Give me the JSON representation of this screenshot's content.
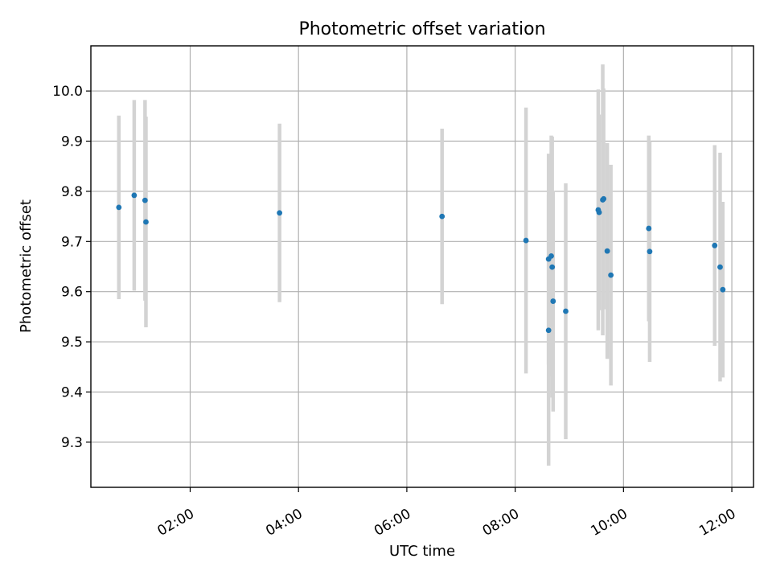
{
  "chart_data": {
    "type": "scatter",
    "title": "Photometric offset variation",
    "xlabel": "UTC time",
    "ylabel": "Photometric offset",
    "x_axis": "time",
    "xlim": [
      "00:10",
      "12:24"
    ],
    "ylim": [
      9.21,
      10.09
    ],
    "xticks": [
      "02:00",
      "04:00",
      "06:00",
      "08:00",
      "10:00",
      "12:00"
    ],
    "yticks": [
      9.3,
      9.4,
      9.5,
      9.6,
      9.7,
      9.8,
      9.9,
      10.0
    ],
    "ytick_labels": [
      "9.3",
      "9.4",
      "9.5",
      "9.6",
      "9.7",
      "9.8",
      "9.9",
      "10.0"
    ],
    "grid": true,
    "colors": {
      "point": "#1f77b4",
      "error_bar": "#d3d3d3",
      "grid": "#b0b0b0"
    },
    "points": [
      {
        "x": "00:41",
        "y": 9.768,
        "err": 0.183
      },
      {
        "x": "00:58",
        "y": 9.792,
        "err": 0.19
      },
      {
        "x": "01:10",
        "y": 9.782,
        "err": 0.2
      },
      {
        "x": "01:11",
        "y": 9.739,
        "err": 0.21
      },
      {
        "x": "03:39",
        "y": 9.757,
        "err": 0.178
      },
      {
        "x": "06:39",
        "y": 9.75,
        "err": 0.175
      },
      {
        "x": "08:12",
        "y": 9.702,
        "err": 0.265
      },
      {
        "x": "08:37",
        "y": 9.665,
        "err": 0.21
      },
      {
        "x": "08:37",
        "y": 9.523,
        "err": 0.27
      },
      {
        "x": "08:40",
        "y": 9.671,
        "err": 0.24
      },
      {
        "x": "08:41",
        "y": 9.649,
        "err": 0.26
      },
      {
        "x": "08:42",
        "y": 9.581,
        "err": 0.22
      },
      {
        "x": "08:56",
        "y": 9.561,
        "err": 0.255
      },
      {
        "x": "09:32",
        "y": 9.763,
        "err": 0.24
      },
      {
        "x": "09:33",
        "y": 9.758,
        "err": 0.195
      },
      {
        "x": "09:37",
        "y": 9.783,
        "err": 0.27
      },
      {
        "x": "09:38",
        "y": 9.785,
        "err": 0.22
      },
      {
        "x": "09:42",
        "y": 9.681,
        "err": 0.215
      },
      {
        "x": "09:46",
        "y": 9.633,
        "err": 0.22
      },
      {
        "x": "10:28",
        "y": 9.726,
        "err": 0.185
      },
      {
        "x": "10:29",
        "y": 9.68,
        "err": 0.22
      },
      {
        "x": "11:41",
        "y": 9.692,
        "err": 0.2
      },
      {
        "x": "11:47",
        "y": 9.649,
        "err": 0.228
      },
      {
        "x": "11:50",
        "y": 9.604,
        "err": 0.175
      }
    ]
  }
}
